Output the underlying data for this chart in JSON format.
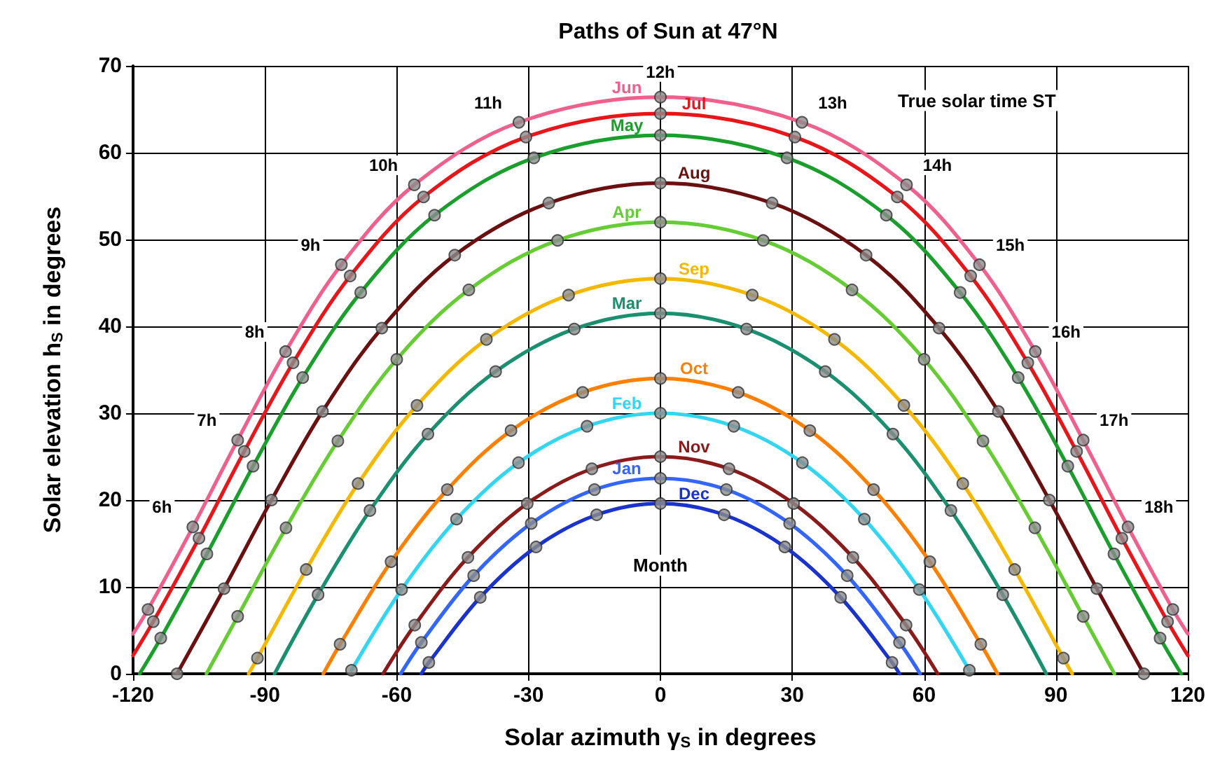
{
  "chart_data": {
    "type": "line",
    "title": "Paths of Sun at 47°N",
    "xlabel": "Solar azimuth γ$_{S}$ in degrees",
    "ylabel": "Solar elevation h$_{S}$ in degrees",
    "xlim": [
      -120,
      120
    ],
    "xticks": [
      -120,
      -90,
      -60,
      -30,
      0,
      30,
      60,
      90,
      120
    ],
    "ylim": [
      0,
      70
    ],
    "yticks": [
      0,
      10,
      20,
      30,
      40,
      50,
      60,
      70
    ],
    "grid": true,
    "legend": false,
    "annotations": [
      {
        "text": "6h",
        "x": -106.4,
        "y": 16.9
      },
      {
        "text": "7h",
        "x": -96.2,
        "y": 26.9
      },
      {
        "text": "8h",
        "x": -85.3,
        "y": 37.1
      },
      {
        "text": "9h",
        "x": -72.6,
        "y": 47.1
      },
      {
        "text": "10h",
        "x": -56.0,
        "y": 56.3
      },
      {
        "text": "11h",
        "x": -32.2,
        "y": 63.5
      },
      {
        "text": "12h",
        "x": 0,
        "y": 66.4
      },
      {
        "text": "13h",
        "x": 32.2,
        "y": 63.5
      },
      {
        "text": "14h",
        "x": 56.0,
        "y": 56.3
      },
      {
        "text": "15h",
        "x": 72.6,
        "y": 47.1
      },
      {
        "text": "16h",
        "x": 85.3,
        "y": 37.1
      },
      {
        "text": "17h",
        "x": 96.2,
        "y": 26.9
      },
      {
        "text": "18h",
        "x": 106.4,
        "y": 16.9
      },
      "True solar time ST",
      "Month"
    ],
    "series": [
      {
        "name": "Jun",
        "marker": "none",
        "color": "#f0608c",
        "x": [
          -120,
          -116.6,
          -106.4,
          -96.2,
          -85.3,
          -72.6,
          -56.0,
          -32.2,
          0,
          32.2,
          56.0,
          72.6,
          85.3,
          96.2,
          106.4,
          116.6,
          120
        ],
        "values": [
          4.6,
          7.4,
          16.9,
          26.9,
          37.1,
          47.1,
          56.3,
          63.5,
          66.4,
          63.5,
          56.3,
          47.1,
          37.1,
          26.9,
          16.9,
          7.4,
          4.6
        ]
      },
      {
        "name": "Jul",
        "marker": "none",
        "color": "#e8161b",
        "x": [
          -120,
          -115.4,
          -105.0,
          -94.7,
          -83.6,
          -70.6,
          -53.9,
          -30.6,
          0,
          30.6,
          53.9,
          70.6,
          83.6,
          94.7,
          105.0,
          115.4,
          120
        ],
        "values": [
          2.1,
          6.0,
          15.6,
          25.6,
          35.8,
          45.8,
          54.9,
          61.8,
          64.5,
          61.8,
          54.9,
          45.8,
          35.8,
          25.6,
          15.6,
          6.0,
          2.1
        ]
      },
      {
        "name": "May",
        "marker": "none",
        "color": "#1a9e2c",
        "x": [
          -118.5,
          -113.7,
          -103.2,
          -92.7,
          -81.4,
          -68.2,
          -51.4,
          -28.8,
          0,
          28.8,
          51.4,
          68.2,
          81.4,
          92.7,
          103.2,
          113.7,
          118.5
        ],
        "values": [
          0,
          4.1,
          13.8,
          23.9,
          34.1,
          43.9,
          52.8,
          59.4,
          62.0,
          59.4,
          52.8,
          43.9,
          34.1,
          23.9,
          13.8,
          4.1,
          0
        ]
      },
      {
        "name": "Aug",
        "marker": "none",
        "color": "#6b1010",
        "x": [
          -110.0,
          -99.3,
          -88.5,
          -76.9,
          -63.4,
          -46.8,
          -25.4,
          0,
          25.4,
          46.8,
          63.4,
          76.9,
          88.5,
          99.3,
          110.0
        ],
        "values": [
          0,
          9.8,
          20.0,
          30.2,
          39.8,
          48.2,
          54.2,
          56.5,
          54.2,
          48.2,
          39.8,
          30.2,
          20.0,
          9.8,
          0
        ]
      },
      {
        "name": "Apr",
        "marker": "none",
        "color": "#66cc33",
        "x": [
          -103.3,
          -96.2,
          -85.2,
          -73.4,
          -60.0,
          -43.6,
          -23.4,
          0,
          23.4,
          43.6,
          60.0,
          73.4,
          85.2,
          96.2,
          103.3
        ],
        "values": [
          0,
          6.6,
          16.8,
          26.8,
          36.2,
          44.2,
          49.9,
          52.0,
          49.9,
          44.2,
          36.2,
          26.8,
          16.8,
          6.6,
          0
        ]
      },
      {
        "name": "Sep",
        "marker": "none",
        "color": "#f5b800",
        "x": [
          -93.7,
          -91.7,
          -80.6,
          -68.8,
          -55.4,
          -39.6,
          -20.9,
          0,
          20.9,
          39.6,
          55.4,
          68.8,
          80.6,
          91.7,
          93.7
        ],
        "values": [
          0,
          1.8,
          12.0,
          21.9,
          30.9,
          38.5,
          43.6,
          45.5,
          43.6,
          38.5,
          30.9,
          21.9,
          12.0,
          1.8,
          0
        ]
      },
      {
        "name": "Mar",
        "marker": "none",
        "color": "#1a9070",
        "x": [
          -87.8,
          -77.9,
          -66.1,
          -52.9,
          -37.5,
          -19.6,
          0,
          19.6,
          37.5,
          52.9,
          66.1,
          77.9,
          87.8
        ],
        "values": [
          0,
          9.1,
          18.8,
          27.6,
          34.8,
          39.7,
          41.5,
          39.7,
          34.8,
          27.6,
          18.8,
          9.1,
          0
        ]
      },
      {
        "name": "Oct",
        "marker": "none",
        "color": "#ff8000",
        "x": [
          -76.7,
          -72.9,
          -61.3,
          -48.5,
          -34.0,
          -17.7,
          0,
          17.7,
          34.0,
          48.5,
          61.3,
          72.9,
          76.7
        ],
        "values": [
          0,
          3.4,
          12.9,
          21.2,
          28.0,
          32.4,
          34.0,
          32.4,
          28.0,
          21.2,
          12.9,
          3.4,
          0
        ]
      },
      {
        "name": "Feb",
        "marker": "none",
        "color": "#33d6f0",
        "x": [
          -70.3,
          -58.9,
          -46.4,
          -32.3,
          -16.7,
          0,
          16.7,
          32.3,
          46.4,
          58.9,
          70.3
        ],
        "values": [
          0.4,
          9.7,
          17.8,
          24.3,
          28.5,
          30.0,
          28.5,
          24.3,
          17.8,
          9.7,
          0.4
        ]
      },
      {
        "name": "Nov",
        "marker": "none",
        "color": "#8b1a1a",
        "x": [
          -63.1,
          -55.9,
          -43.8,
          -30.3,
          -15.6,
          0,
          15.6,
          30.3,
          43.8,
          55.9,
          63.1
        ],
        "values": [
          0,
          5.6,
          13.4,
          19.6,
          23.6,
          25.0,
          23.6,
          19.6,
          13.4,
          5.6,
          0
        ]
      },
      {
        "name": "Jan",
        "marker": "none",
        "color": "#3366ff",
        "x": [
          -59.1,
          -54.4,
          -42.5,
          -29.4,
          -15.0,
          0,
          15.0,
          29.4,
          42.5,
          54.4,
          59.1
        ],
        "values": [
          0,
          3.6,
          11.3,
          17.3,
          21.2,
          22.5,
          21.2,
          17.3,
          11.3,
          3.6,
          0
        ]
      },
      {
        "name": "Dec",
        "marker": "none",
        "color": "#1a33cc",
        "x": [
          -54.4,
          -52.7,
          -41.0,
          -28.3,
          -14.5,
          0,
          14.5,
          28.3,
          41.0,
          52.7,
          54.4
        ],
        "values": [
          0,
          1.3,
          8.8,
          14.6,
          18.3,
          19.6,
          18.3,
          14.6,
          8.8,
          1.3,
          0
        ]
      },
      {
        "type": "scatter",
        "marker": "circle",
        "color": "#8c8c8c",
        "x": [
          -116.6,
          -106.4,
          -96.2,
          -85.3,
          -72.6,
          -56.0,
          -32.2,
          0,
          32.2,
          56.0,
          72.6,
          85.3,
          96.2,
          106.4,
          116.6,
          -115.4,
          -105.0,
          -94.7,
          -83.6,
          -70.6,
          -53.9,
          -30.6,
          0,
          30.6,
          53.9,
          70.6,
          83.6,
          94.7,
          105.0,
          115.4,
          -113.7,
          -103.2,
          -92.7,
          -81.4,
          -68.2,
          -51.4,
          -28.8,
          0,
          28.8,
          51.4,
          68.2,
          81.4,
          92.7,
          103.2,
          113.7,
          -110.0,
          -99.3,
          -88.5,
          -76.9,
          -63.4,
          -46.8,
          -25.4,
          0,
          25.4,
          46.8,
          63.4,
          76.9,
          88.5,
          99.3,
          110.0,
          -96.2,
          -85.2,
          -73.4,
          -60.0,
          -43.6,
          -23.4,
          0,
          23.4,
          43.6,
          60.0,
          73.4,
          85.2,
          96.2,
          -91.7,
          -80.6,
          -68.8,
          -55.4,
          -39.6,
          -20.9,
          0,
          20.9,
          39.6,
          55.4,
          68.8,
          80.6,
          91.7,
          -77.9,
          -66.1,
          -52.9,
          -37.5,
          -19.6,
          0,
          19.6,
          37.5,
          52.9,
          66.1,
          77.9,
          -72.9,
          -61.3,
          -48.5,
          -34.0,
          -17.7,
          0,
          17.7,
          34.0,
          48.5,
          61.3,
          72.9,
          -70.3,
          -58.9,
          -46.4,
          -32.3,
          -16.7,
          0,
          16.7,
          32.3,
          46.4,
          58.9,
          70.3,
          -55.9,
          -43.8,
          -30.3,
          -15.6,
          0,
          15.6,
          30.3,
          43.8,
          55.9,
          -54.4,
          -42.5,
          -29.4,
          -15.0,
          0,
          15.0,
          29.4,
          42.5,
          54.4,
          -52.7,
          -41.0,
          -28.3,
          -14.5,
          0,
          14.5,
          28.3,
          41.0,
          52.7
        ],
        "values": [
          7.4,
          16.9,
          26.9,
          37.1,
          47.1,
          56.3,
          63.5,
          66.4,
          63.5,
          56.3,
          47.1,
          37.1,
          26.9,
          16.9,
          7.4,
          6.0,
          15.6,
          25.6,
          35.8,
          45.8,
          54.9,
          61.8,
          64.5,
          61.8,
          54.9,
          45.8,
          35.8,
          25.6,
          15.6,
          6.0,
          4.1,
          13.8,
          23.9,
          34.1,
          43.9,
          52.8,
          59.4,
          62.0,
          59.4,
          52.8,
          43.9,
          34.1,
          23.9,
          13.8,
          4.1,
          0,
          9.8,
          20.0,
          30.2,
          39.8,
          48.2,
          54.2,
          56.5,
          54.2,
          48.2,
          39.8,
          30.2,
          20.0,
          9.8,
          0,
          6.6,
          16.8,
          26.8,
          36.2,
          44.2,
          49.9,
          52.0,
          49.9,
          44.2,
          36.2,
          26.8,
          16.8,
          6.6,
          1.8,
          12.0,
          21.9,
          30.9,
          38.5,
          43.6,
          45.5,
          43.6,
          38.5,
          30.9,
          21.9,
          12.0,
          1.8,
          9.1,
          18.8,
          27.6,
          34.8,
          39.7,
          41.5,
          39.7,
          34.8,
          27.6,
          18.8,
          9.1,
          3.4,
          12.9,
          21.2,
          28.0,
          32.4,
          34.0,
          32.4,
          28.0,
          21.2,
          12.9,
          3.4,
          0.4,
          9.7,
          17.8,
          24.3,
          28.5,
          30.0,
          28.5,
          24.3,
          17.8,
          9.7,
          0.4,
          5.6,
          13.4,
          19.6,
          23.6,
          25.0,
          23.6,
          19.6,
          13.4,
          5.6,
          3.6,
          11.3,
          17.3,
          21.2,
          22.5,
          21.2,
          17.3,
          11.3,
          3.6,
          1.3,
          8.8,
          14.6,
          18.3,
          19.6,
          18.3,
          14.6,
          8.8,
          1.3
        ]
      }
    ]
  }
}
